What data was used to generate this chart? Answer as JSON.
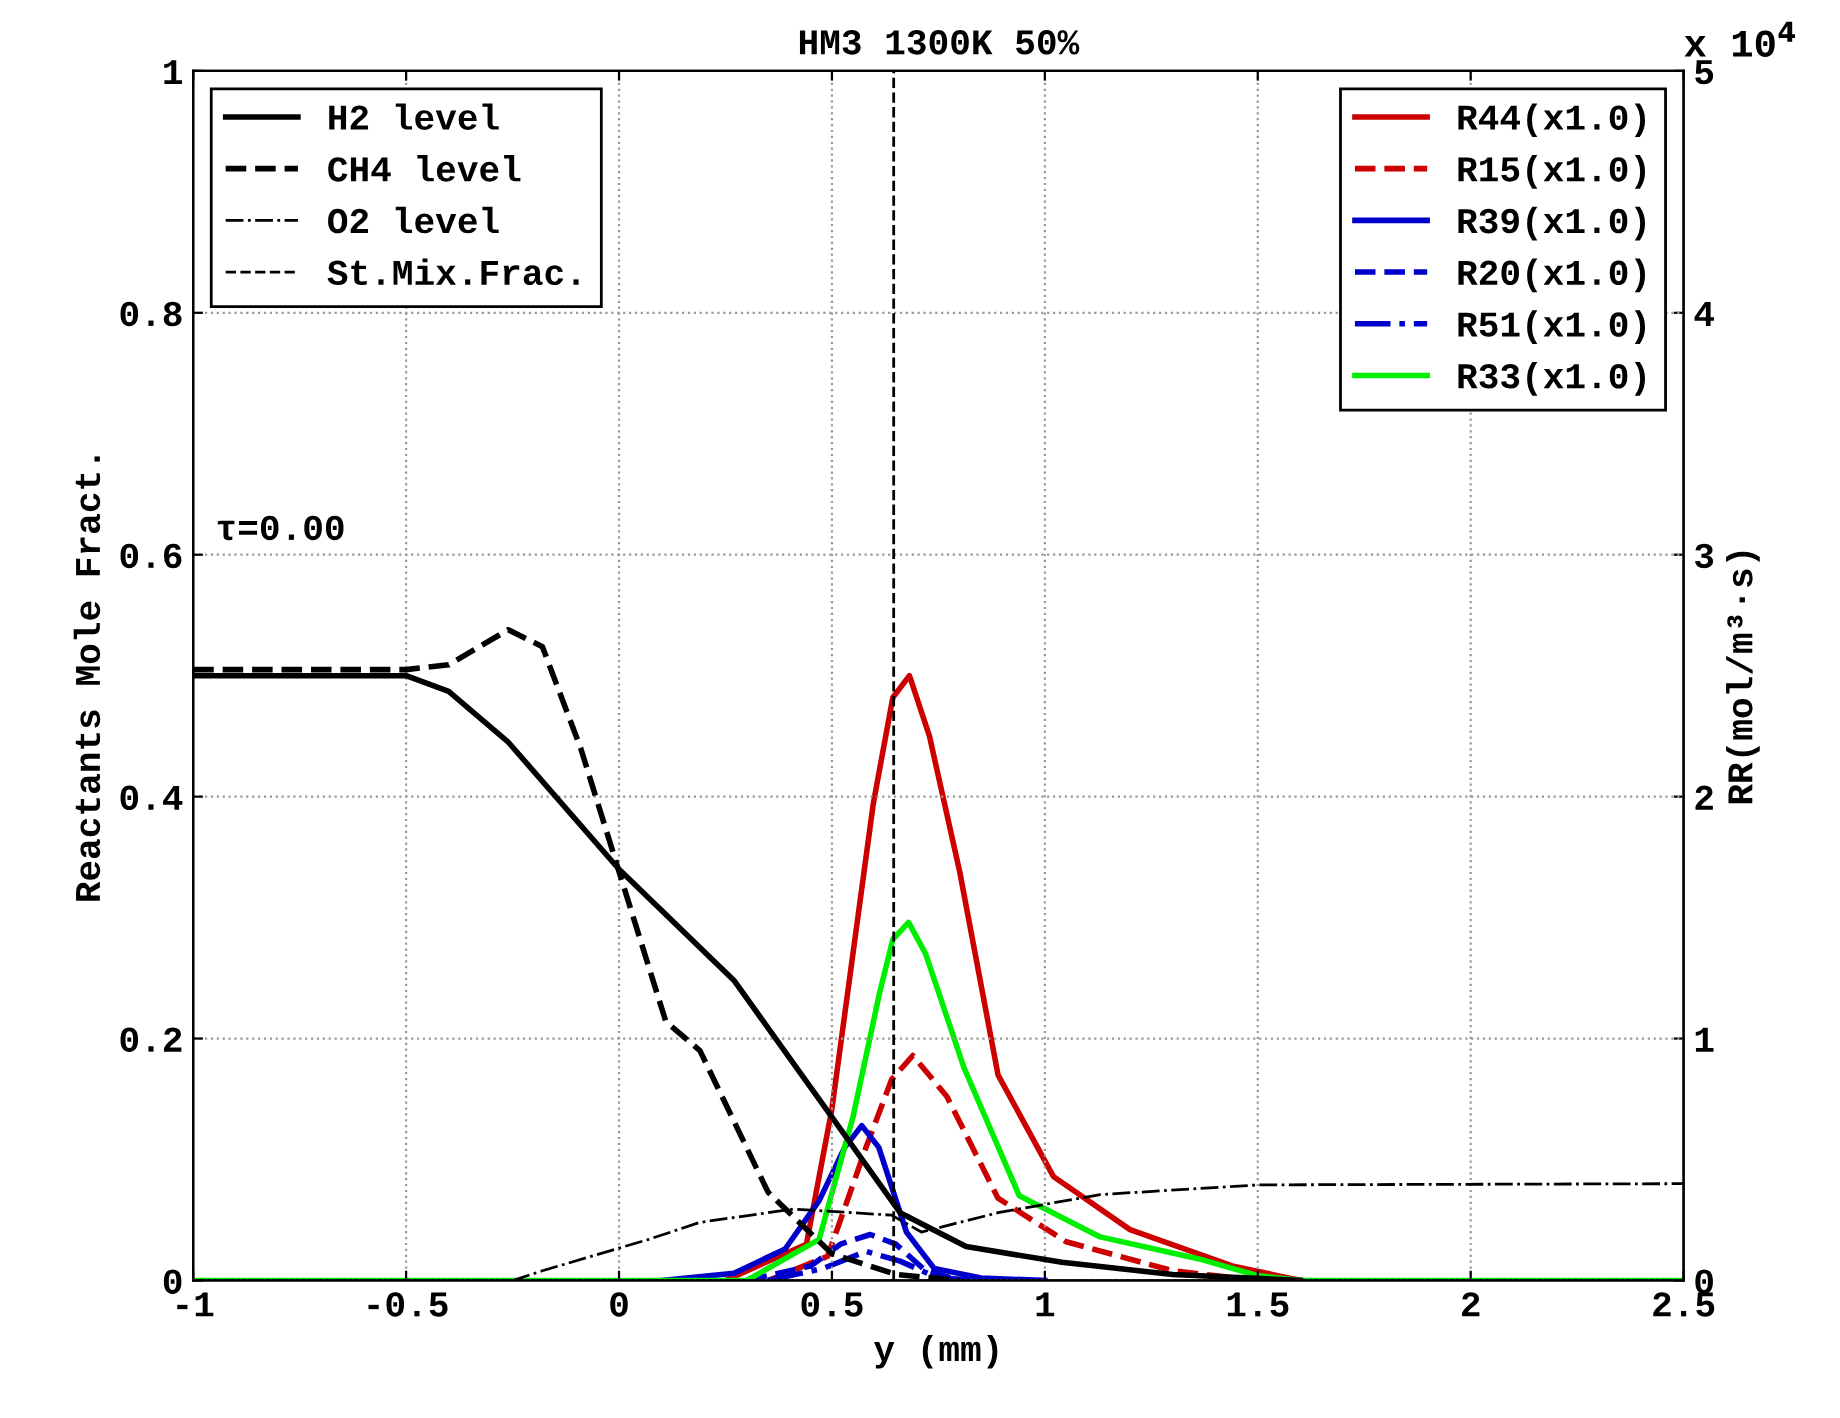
{
  "chart_data": {
    "type": "line",
    "title": "HM3 1300K 50%",
    "xlabel": "y (mm)",
    "ylabel": "Reactants Mole Fract.",
    "y2label": "RR(mol/m³·s)",
    "annotations": [
      "τ=0.00",
      "x 10$^{4}$"
    ],
    "xlim": [
      -1,
      2.5
    ],
    "xticks": [
      -1,
      -0.5,
      0,
      0.5,
      1,
      1.5,
      2,
      2.5
    ],
    "ylim": [
      0,
      1
    ],
    "yticks": [
      0,
      0.2,
      0.4,
      0.6,
      0.8,
      1
    ],
    "y2lim": [
      0,
      5
    ],
    "y2ticks": [
      0,
      1,
      2,
      3,
      4,
      5
    ],
    "grid": true,
    "legend": "top",
    "marker": "none",
    "series": [
      {
        "name": "H2 level",
        "color": "#000000",
        "line_style": "solid",
        "x": [
          -1,
          -0.5,
          -0.4,
          -0.26,
          0,
          0.27,
          0.5,
          0.66,
          0.815,
          1.04,
          1.3,
          1.6
        ],
        "values": [
          0.5,
          0.5,
          0.487,
          0.445,
          0.34,
          0.248,
          0.135,
          0.056,
          0.028,
          0.015,
          0.005,
          0
        ]
      },
      {
        "name": "CH4 level",
        "color": "#000000",
        "line_style": "dashed",
        "x": [
          -1,
          -0.5,
          -0.4,
          -0.26,
          -0.18,
          -0.09,
          0,
          0.11,
          0.19,
          0.35,
          0.5,
          0.65,
          0.8
        ],
        "values": [
          0.505,
          0.505,
          0.509,
          0.538,
          0.524,
          0.44,
          0.338,
          0.214,
          0.19,
          0.073,
          0.022,
          0.005,
          0
        ]
      },
      {
        "name": "O2 level",
        "color": "#000000",
        "line_style": "dashdot",
        "x": [
          -0.25,
          -0.18,
          0.07,
          0.19,
          0.41,
          0.64,
          0.71,
          0.89,
          1.13,
          1.5,
          2.5
        ],
        "values": [
          0,
          0.008,
          0.034,
          0.048,
          0.059,
          0.054,
          0.04,
          0.056,
          0.071,
          0.079,
          0.08
        ]
      },
      {
        "name": "St.Mix.Frac.",
        "color": "#000000",
        "line_style": "dashed",
        "x": [
          0.645,
          0.645
        ],
        "values": [
          0,
          1
        ]
      },
      {
        "name": "R44(x1.0)",
        "color": "#cc0000",
        "line_style": "solid",
        "axis": "y2",
        "x": [
          0.25,
          0.44,
          0.5,
          0.597,
          0.643,
          0.682,
          0.729,
          0.8,
          0.89,
          1.02,
          1.2,
          1.44,
          1.6
        ],
        "values": [
          0,
          0.15,
          0.71,
          1.97,
          2.41,
          2.5,
          2.25,
          1.69,
          0.85,
          0.43,
          0.21,
          0.06,
          0
        ]
      },
      {
        "name": "R15(x1.0)",
        "color": "#cc0000",
        "line_style": "dashed",
        "axis": "y2",
        "x": [
          0.35,
          0.49,
          0.58,
          0.64,
          0.69,
          0.77,
          0.89,
          1.05,
          1.3,
          1.5
        ],
        "values": [
          0,
          0.1,
          0.55,
          0.83,
          0.93,
          0.76,
          0.34,
          0.16,
          0.04,
          0
        ]
      },
      {
        "name": "R39(x1.0)",
        "color": "#0000cc",
        "line_style": "solid",
        "axis": "y2",
        "x": [
          0.1,
          0.27,
          0.39,
          0.47,
          0.53,
          0.57,
          0.61,
          0.675,
          0.74,
          0.85,
          1.0
        ],
        "values": [
          0,
          0.03,
          0.13,
          0.33,
          0.55,
          0.64,
          0.55,
          0.2,
          0.05,
          0.01,
          0
        ]
      },
      {
        "name": "R20(x1.0)",
        "color": "#0000cc",
        "line_style": "dashed",
        "axis": "y2",
        "x": [
          0.3,
          0.45,
          0.52,
          0.59,
          0.65,
          0.72,
          0.8
        ],
        "values": [
          0,
          0.06,
          0.15,
          0.19,
          0.15,
          0.04,
          0
        ]
      },
      {
        "name": "R51(x1.0)",
        "color": "#0000cc",
        "line_style": "dashdot",
        "axis": "y2",
        "x": [
          0.35,
          0.48,
          0.58,
          0.66,
          0.75,
          0.85
        ],
        "values": [
          0,
          0.05,
          0.12,
          0.08,
          0.01,
          0
        ]
      },
      {
        "name": "R33(x1.0)",
        "color": "#00ee00",
        "line_style": "solid",
        "axis": "y2",
        "x": [
          -1,
          0.3,
          0.47,
          0.55,
          0.612,
          0.643,
          0.68,
          0.72,
          0.81,
          0.94,
          1.13,
          1.36,
          1.5,
          1.6,
          2.5
        ],
        "values": [
          0,
          0,
          0.17,
          0.68,
          1.19,
          1.41,
          1.48,
          1.35,
          0.88,
          0.35,
          0.18,
          0.09,
          0.02,
          0,
          0
        ]
      }
    ]
  }
}
